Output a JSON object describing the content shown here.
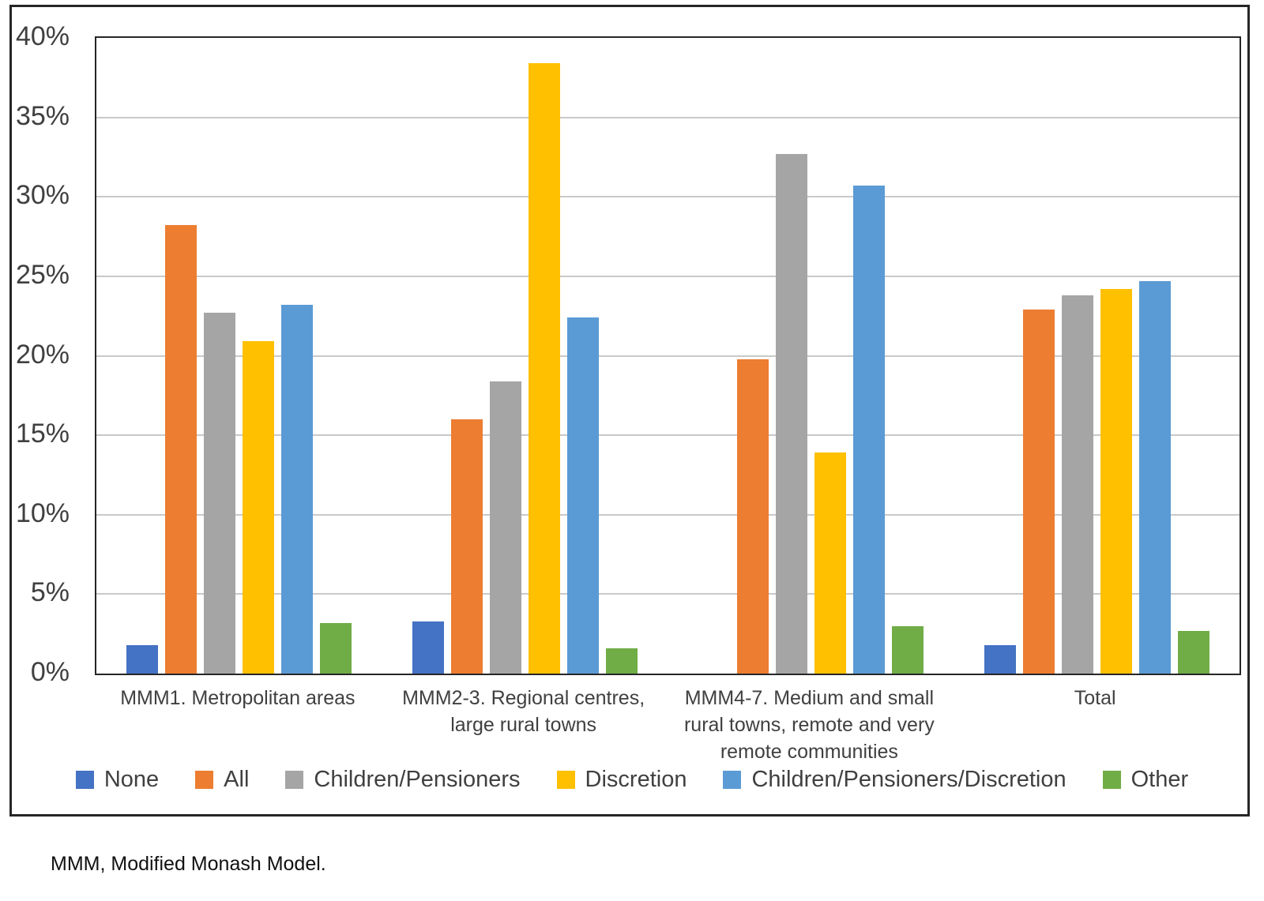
{
  "chart_data": {
    "type": "bar",
    "title": "",
    "xlabel": "",
    "ylabel": "",
    "ylim": [
      0,
      40
    ],
    "ytick_step": 5,
    "yticks": [
      {
        "value": 0,
        "label": "0%"
      },
      {
        "value": 5,
        "label": "5%"
      },
      {
        "value": 10,
        "label": "10%"
      },
      {
        "value": 15,
        "label": "15%"
      },
      {
        "value": 20,
        "label": "20%"
      },
      {
        "value": 25,
        "label": "25%"
      },
      {
        "value": 30,
        "label": "30%"
      },
      {
        "value": 35,
        "label": "35%"
      },
      {
        "value": 40,
        "label": "40%"
      }
    ],
    "grid": true,
    "legend_position": "bottom",
    "categories": [
      "MMM1. Metropolitan areas",
      "MMM2-3. Regional centres, large rural towns",
      "MMM4-7. Medium and small rural towns, remote and very remote communities",
      "Total"
    ],
    "series": [
      {
        "name": "None",
        "color": "#4472C4",
        "values": [
          1.8,
          3.3,
          0,
          1.8
        ]
      },
      {
        "name": "All",
        "color": "#ED7D31",
        "values": [
          28.2,
          16.0,
          19.8,
          22.9
        ]
      },
      {
        "name": "Children/Pensioners",
        "color": "#A5A5A5",
        "values": [
          22.7,
          18.4,
          32.7,
          23.8
        ]
      },
      {
        "name": "Discretion",
        "color": "#FFC000",
        "values": [
          20.9,
          38.4,
          13.9,
          24.2
        ]
      },
      {
        "name": "Children/Pensioners/Discretion",
        "color": "#5B9BD5",
        "values": [
          23.2,
          22.4,
          30.7,
          24.7
        ]
      },
      {
        "name": "Other",
        "color": "#70AD47",
        "values": [
          3.2,
          1.6,
          3.0,
          2.7
        ]
      }
    ],
    "colors": {
      "grid": "#c9c9c9",
      "plot_border": "#262626",
      "text": "#404040"
    }
  },
  "footnote": "MMM, Modified Monash Model."
}
